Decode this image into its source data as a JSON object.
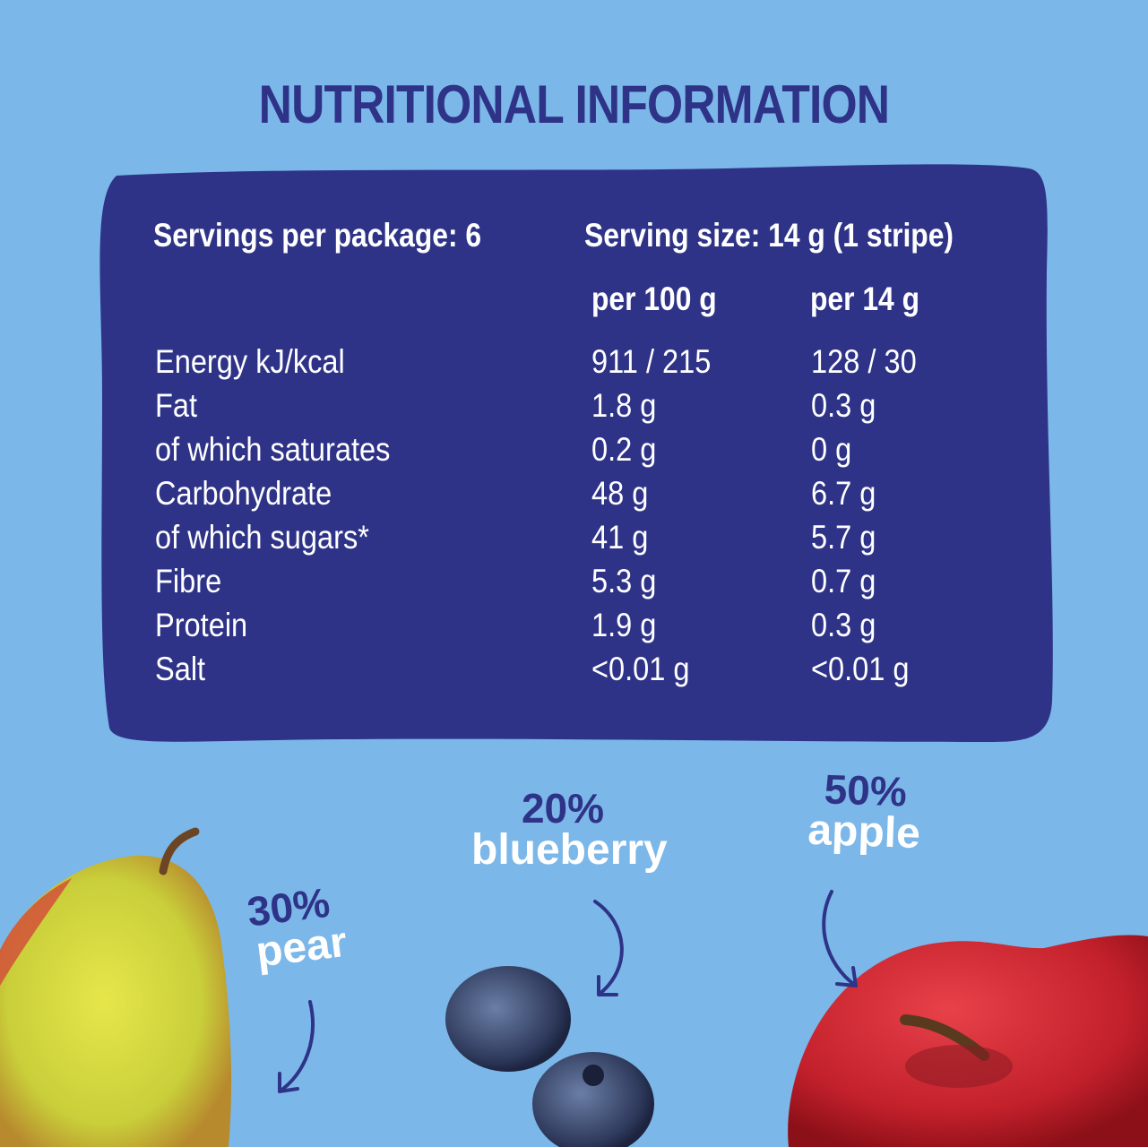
{
  "title": "NUTRITIONAL INFORMATION",
  "colors": {
    "background": "#7bb7e8",
    "panel": "#2e3387",
    "text_on_panel": "#ffffff"
  },
  "table": {
    "servings_per_package": "Servings per package: 6",
    "serving_size": "Serving size: 14 g (1 stripe)",
    "col_per100": "per 100 g",
    "col_perserving": "per 14 g",
    "rows": [
      {
        "label": "Energy kJ/kcal",
        "per100": "911 / 215",
        "perserving": "128 / 30"
      },
      {
        "label": "Fat",
        "per100": "1.8 g",
        "perserving": "0.3 g"
      },
      {
        "label": "of which saturates",
        "per100": "0.2 g",
        "perserving": "0 g"
      },
      {
        "label": "Carbohydrate",
        "per100": "48 g",
        "perserving": "6.7 g"
      },
      {
        "label": "of which sugars*",
        "per100": "41 g",
        "perserving": "5.7 g"
      },
      {
        "label": "Fibre",
        "per100": "5.3 g",
        "perserving": "0.7 g"
      },
      {
        "label": "Protein",
        "per100": "1.9 g",
        "perserving": "0.3 g"
      },
      {
        "label": "Salt",
        "per100": "<0.01 g",
        "perserving": "<0.01 g"
      }
    ]
  },
  "fruits": {
    "pear": {
      "percent": "30%",
      "name": "pear",
      "icon": "pear-icon"
    },
    "blueberry": {
      "percent": "20%",
      "name": "blueberry",
      "icon": "blueberry-icon"
    },
    "apple": {
      "percent": "50%",
      "name": "apple",
      "icon": "apple-icon"
    }
  }
}
